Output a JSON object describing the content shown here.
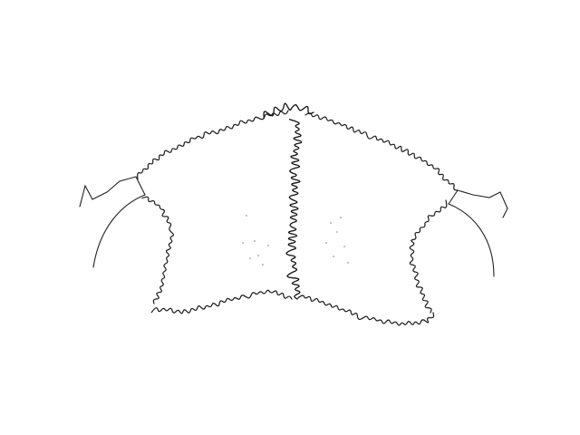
{
  "drawing": {
    "subject": "",
    "line_color": "#1a1a1a",
    "background_color": "#ffffff",
    "stipple_color": "#9a9a9a"
  }
}
